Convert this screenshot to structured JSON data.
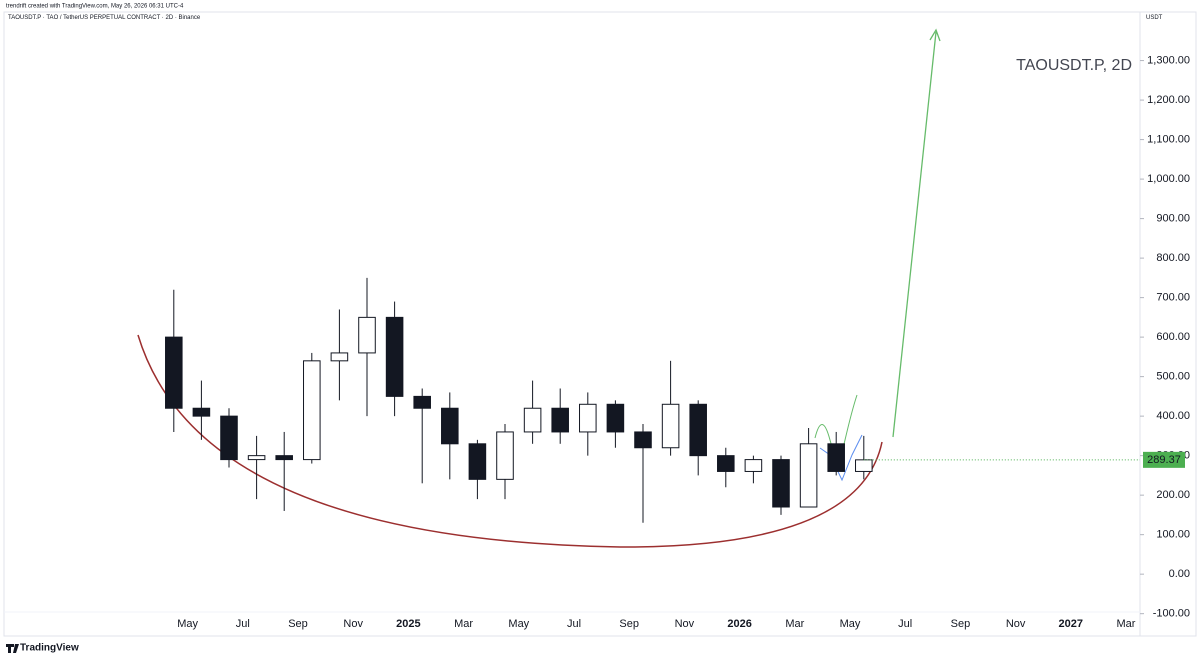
{
  "header": "trendrift created with TradingView.com, May 26, 2026 06:31 UTC-4",
  "brand": "TradingView",
  "chart_data": {
    "type": "candlestick",
    "symbol_line": "TAOUSDT.P · TAO / TetherUS PERPETUAL CONTRACT · 2D · Binance",
    "currency": "USDT",
    "title": "TAOUSDT.P, 2D",
    "categories": [
      null,
      "May",
      null,
      "Jul",
      null,
      "Sep",
      null,
      "Nov",
      null,
      "2025",
      null,
      "Mar",
      null,
      "May",
      null,
      "Jul",
      null,
      "Sep",
      null,
      "Nov",
      null,
      "2026",
      null,
      "Mar",
      null,
      "May",
      null,
      "Jul",
      null,
      "Sep",
      null,
      "Nov",
      null,
      "2027",
      null,
      "Mar"
    ],
    "open": [
      600,
      420,
      400,
      290,
      300,
      290,
      540,
      560,
      650,
      450,
      420,
      330,
      240,
      360,
      420,
      360,
      430,
      360,
      320,
      430,
      300,
      260,
      290,
      170,
      330,
      260,
      null,
      null,
      null,
      null,
      null,
      null,
      null,
      null,
      null,
      null
    ],
    "high": [
      720,
      490,
      420,
      350,
      360,
      560,
      670,
      750,
      690,
      470,
      460,
      340,
      380,
      490,
      470,
      460,
      440,
      380,
      540,
      440,
      320,
      300,
      300,
      370,
      360,
      350,
      null,
      null,
      null,
      null,
      null,
      null,
      null,
      null,
      null,
      null
    ],
    "low": [
      360,
      340,
      270,
      190,
      160,
      280,
      440,
      400,
      400,
      230,
      240,
      190,
      190,
      330,
      330,
      300,
      320,
      130,
      300,
      250,
      220,
      230,
      150,
      170,
      250,
      240,
      null,
      null,
      null,
      null,
      null,
      null,
      null,
      null,
      null,
      null
    ],
    "close": [
      420,
      400,
      290,
      300,
      290,
      540,
      560,
      650,
      450,
      420,
      330,
      240,
      360,
      420,
      360,
      430,
      360,
      320,
      430,
      300,
      260,
      290,
      170,
      330,
      260,
      289.37,
      null,
      null,
      null,
      null,
      null,
      null,
      null,
      null,
      null,
      null
    ],
    "up_color": "#ffffff",
    "down_color": "#131722",
    "last_color": "#4caf50",
    "ylim": [
      -116,
      1428
    ],
    "yticks": [
      {
        "value": -100,
        "label": "-100.00"
      },
      {
        "value": 0,
        "label": "0.00"
      },
      {
        "value": 100,
        "label": "100.00"
      },
      {
        "value": 200,
        "label": "200.00"
      },
      {
        "value": 300,
        "label": "300.00"
      },
      {
        "value": 400,
        "label": "400.00"
      },
      {
        "value": 500,
        "label": "500.00"
      },
      {
        "value": 600,
        "label": "600.00"
      },
      {
        "value": 700,
        "label": "700.00"
      },
      {
        "value": 800,
        "label": "800.00"
      },
      {
        "value": 900,
        "label": "900.00"
      },
      {
        "value": 1000,
        "label": "1,000.00"
      },
      {
        "value": 1100,
        "label": "1,100.00"
      },
      {
        "value": 1200,
        "label": "1,200.00"
      },
      {
        "value": 1300,
        "label": "1,300.00"
      }
    ]
  }
}
